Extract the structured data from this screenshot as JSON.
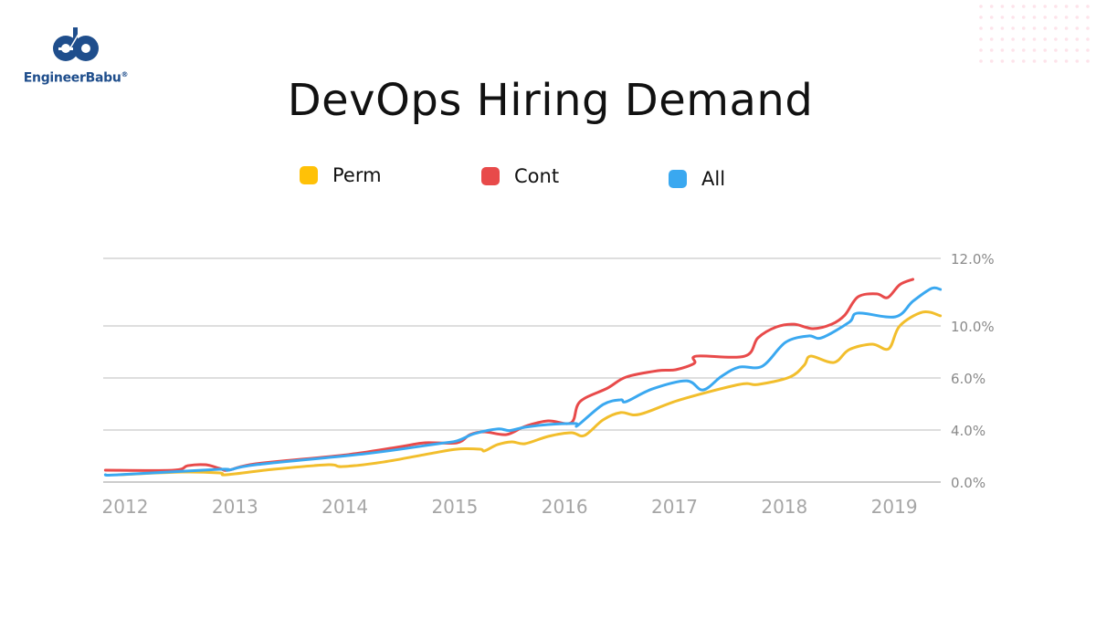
{
  "brand": {
    "name": "EngineerBabu",
    "mark": "®",
    "logo_letters": "eb",
    "color": "#1f4e8c"
  },
  "chart_data": {
    "type": "line",
    "title": "DevOps Hiring Demand",
    "xlabel": "",
    "ylabel": "",
    "x_ticks": [
      "2012",
      "2013",
      "2014",
      "2015",
      "2016",
      "2017",
      "2018",
      "2019"
    ],
    "y_ticks": [
      "0.0%",
      "4.0%",
      "6.0%",
      "10.0%",
      "12.0%"
    ],
    "y_tick_values": [
      0,
      4,
      6,
      10,
      12
    ],
    "xlim": [
      2011.8,
      2019.45
    ],
    "ylim": [
      0,
      12
    ],
    "grid": true,
    "legend_placement": "top",
    "series": [
      {
        "name": "Perm",
        "color": "#f2be2c",
        "legend_color": "#ffc107",
        "x": [
          2011.94,
          2012.52,
          2012.86,
          2012.92,
          2013.35,
          2013.85,
          2013.98,
          2014.35,
          2014.77,
          2015.02,
          2015.23,
          2015.27,
          2015.39,
          2015.52,
          2015.64,
          2015.85,
          2016.06,
          2016.18,
          2016.35,
          2016.51,
          2016.68,
          2017.05,
          2017.59,
          2017.76,
          2018.05,
          2018.18,
          2018.24,
          2018.45,
          2018.59,
          2018.8,
          2018.95,
          2019.05,
          2019.26,
          2019.42
        ],
        "y": [
          0.56,
          0.77,
          0.7,
          0.56,
          0.98,
          1.33,
          1.19,
          1.54,
          2.18,
          2.53,
          2.53,
          2.39,
          2.88,
          3.09,
          2.95,
          3.51,
          3.79,
          3.58,
          4.39,
          4.67,
          4.6,
          5.16,
          5.75,
          5.75,
          6.07,
          6.98,
          7.68,
          7.19,
          8.18,
          8.6,
          8.25,
          10.0,
          10.41,
          10.3
        ]
      },
      {
        "name": "Cont",
        "color": "#e84a4a",
        "legend_color": "#e84a4a",
        "x": [
          2011.82,
          2012.44,
          2012.57,
          2012.73,
          2012.86,
          2012.94,
          2013.19,
          2014.02,
          2014.52,
          2014.73,
          2015.02,
          2015.14,
          2015.27,
          2015.47,
          2015.64,
          2015.85,
          2016.06,
          2016.14,
          2016.39,
          2016.56,
          2016.85,
          2017.01,
          2017.18,
          2017.2,
          2017.64,
          2017.76,
          2017.93,
          2018.09,
          2018.26,
          2018.43,
          2018.55,
          2018.67,
          2018.84,
          2018.94,
          2019.05,
          2019.17
        ],
        "y": [
          0.91,
          0.91,
          1.26,
          1.33,
          1.05,
          0.91,
          1.4,
          2.1,
          2.74,
          3.02,
          3.02,
          3.65,
          3.86,
          3.65,
          4.14,
          4.35,
          4.28,
          5.09,
          5.61,
          6.07,
          6.56,
          6.63,
          7.12,
          7.68,
          7.68,
          9.09,
          9.93,
          10.05,
          9.79,
          10.05,
          10.32,
          10.86,
          10.95,
          10.84,
          11.22,
          11.38
        ]
      },
      {
        "name": "All",
        "color": "#3aa8f0",
        "legend_color": "#3aa8f0",
        "x": [
          2011.82,
          2011.94,
          2012.86,
          2012.94,
          2013.19,
          2014.19,
          2014.85,
          2015.02,
          2015.18,
          2015.39,
          2015.5,
          2015.64,
          2015.85,
          2016.1,
          2016.12,
          2016.35,
          2016.51,
          2016.56,
          2016.8,
          2017.11,
          2017.26,
          2017.43,
          2017.59,
          2017.8,
          2018.01,
          2018.22,
          2018.34,
          2018.59,
          2018.67,
          2019.01,
          2019.17,
          2019.34,
          2019.42
        ],
        "y": [
          0.56,
          0.56,
          0.98,
          0.91,
          1.33,
          2.18,
          2.95,
          3.16,
          3.72,
          4.04,
          3.96,
          4.11,
          4.21,
          4.25,
          4.18,
          4.98,
          5.16,
          5.09,
          5.58,
          5.89,
          5.54,
          6.14,
          6.84,
          6.91,
          8.74,
          9.23,
          9.09,
          10.11,
          10.38,
          10.27,
          10.73,
          11.11,
          11.08
        ]
      }
    ]
  }
}
